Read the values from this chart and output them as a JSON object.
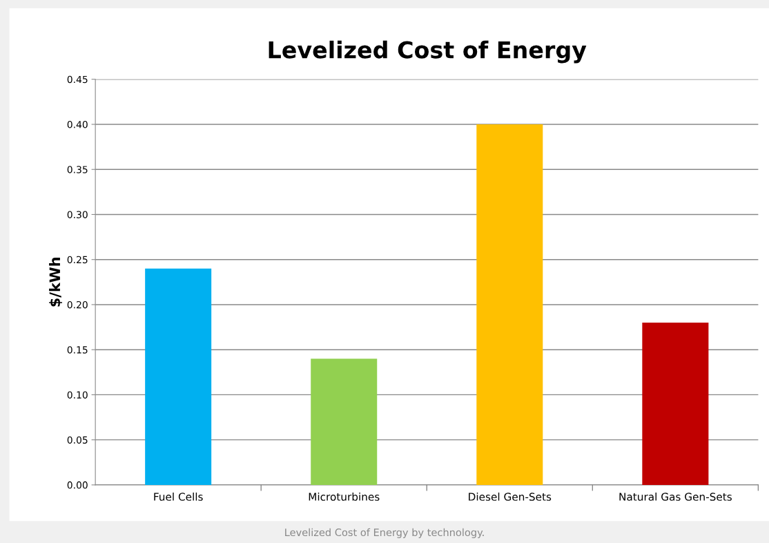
{
  "chart_data": {
    "type": "bar",
    "title": "Levelized Cost of Energy",
    "ylabel": "$/kWh",
    "categories": [
      "Fuel Cells",
      "Microturbines",
      "Diesel Gen-Sets",
      "Natural Gas Gen-Sets"
    ],
    "values": [
      0.24,
      0.14,
      0.4,
      0.18
    ],
    "colors": [
      "#00b0f0",
      "#92d050",
      "#ffc000",
      "#c00000"
    ],
    "ylim": [
      0,
      0.45
    ],
    "yticks": [
      {
        "value": 0,
        "label": "0.00"
      },
      {
        "value": 0.05,
        "label": "0.05"
      },
      {
        "value": 0.1,
        "label": "0.10"
      },
      {
        "value": 0.15,
        "label": "0.15"
      },
      {
        "value": 0.2,
        "label": "0.20"
      },
      {
        "value": 0.25,
        "label": "0.25"
      },
      {
        "value": 0.3,
        "label": "0.30"
      },
      {
        "value": 0.35,
        "label": "0.35"
      },
      {
        "value": 0.4,
        "label": "0.40"
      },
      {
        "value": 0.45,
        "label": "0.45"
      }
    ],
    "grid": "y",
    "legend": false,
    "annotations": [
      "Levelized Cost of Energy by technology."
    ]
  }
}
